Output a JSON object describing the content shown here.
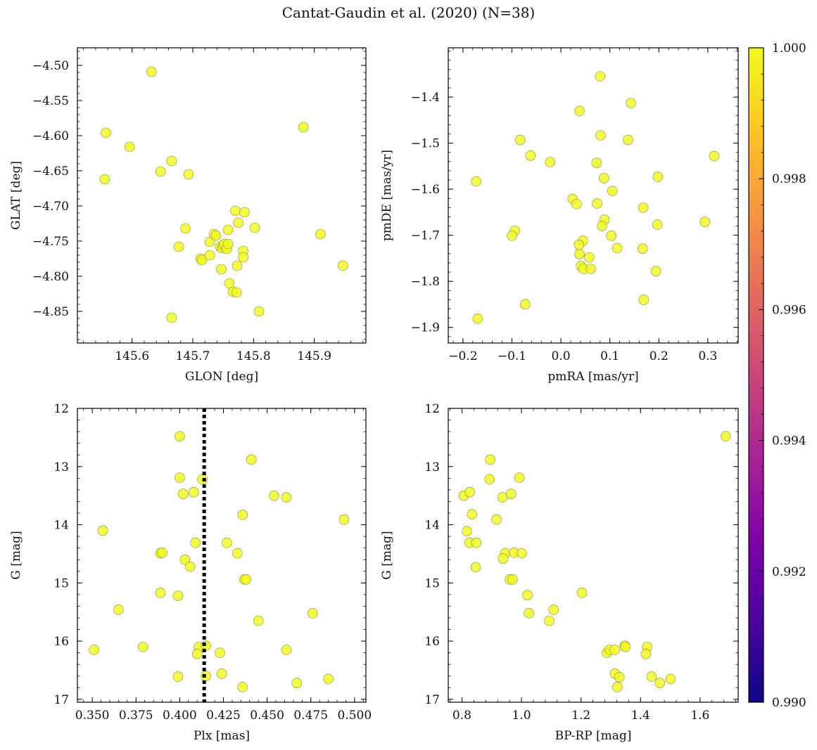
{
  "figure": {
    "title": "Cantat-Gaudin et al. (2020) (N=38)"
  },
  "colorbar": {
    "range": [
      0.99,
      1.0
    ],
    "ticks": [
      "0.990",
      "0.992",
      "0.994",
      "0.996",
      "0.998",
      "1.000"
    ],
    "colormap": "plasma",
    "point_color": "#f0f921"
  },
  "chart_data": [
    {
      "type": "scatter",
      "xlabel": "GLON [deg]",
      "ylabel": "GLAT [deg]",
      "xlim": [
        145.51,
        145.985
      ],
      "ylim": [
        -4.895,
        -4.475
      ],
      "inverted_y": false,
      "xticks": [
        145.6,
        145.7,
        145.8,
        145.9
      ],
      "xtick_labels": [
        "145.6",
        "145.7",
        "145.8",
        "145.9"
      ],
      "yticks": [
        -4.85,
        -4.8,
        -4.75,
        -4.7,
        -4.65,
        -4.6,
        -4.55,
        -4.5
      ],
      "ytick_labels": [
        "−4.85",
        "−4.80",
        "−4.75",
        "−4.70",
        "−4.65",
        "−4.60",
        "−4.55",
        "−4.50"
      ],
      "points": [
        [
          145.632,
          -4.509
        ],
        [
          145.557,
          -4.596
        ],
        [
          145.596,
          -4.616
        ],
        [
          145.555,
          -4.662
        ],
        [
          145.647,
          -4.651
        ],
        [
          145.665,
          -4.636
        ],
        [
          145.693,
          -4.655
        ],
        [
          145.882,
          -4.588
        ],
        [
          145.688,
          -4.732
        ],
        [
          145.677,
          -4.758
        ],
        [
          145.713,
          -4.775
        ],
        [
          145.715,
          -4.777
        ],
        [
          145.728,
          -4.751
        ],
        [
          145.728,
          -4.77
        ],
        [
          145.735,
          -4.74
        ],
        [
          145.738,
          -4.742
        ],
        [
          145.745,
          -4.758
        ],
        [
          145.748,
          -4.76
        ],
        [
          145.75,
          -4.756
        ],
        [
          145.752,
          -4.754
        ],
        [
          145.756,
          -4.761
        ],
        [
          145.758,
          -4.734
        ],
        [
          145.758,
          -4.754
        ],
        [
          145.747,
          -4.79
        ],
        [
          145.77,
          -4.707
        ],
        [
          145.785,
          -4.709
        ],
        [
          145.775,
          -4.724
        ],
        [
          145.773,
          -4.785
        ],
        [
          145.783,
          -4.764
        ],
        [
          145.783,
          -4.773
        ],
        [
          145.802,
          -4.731
        ],
        [
          145.76,
          -4.81
        ],
        [
          145.766,
          -4.822
        ],
        [
          145.772,
          -4.823
        ],
        [
          145.809,
          -4.85
        ],
        [
          145.665,
          -4.859
        ],
        [
          145.91,
          -4.74
        ],
        [
          145.947,
          -4.785
        ]
      ]
    },
    {
      "type": "scatter",
      "xlabel": "pmRA [mas/yr]",
      "ylabel": "pmDE [mas/yr]",
      "xlim": [
        -0.23,
        0.362
      ],
      "ylim": [
        -1.934,
        -1.293
      ],
      "inverted_y": false,
      "xticks": [
        -0.2,
        -0.1,
        0.0,
        0.1,
        0.2,
        0.3
      ],
      "xtick_labels": [
        "−0.2",
        "−0.1",
        "0.0",
        "0.1",
        "0.2",
        "0.3"
      ],
      "yticks": [
        -1.9,
        -1.8,
        -1.7,
        -1.6,
        -1.5,
        -1.4
      ],
      "ytick_labels": [
        "−1.9",
        "−1.8",
        "−1.7",
        "−1.6",
        "−1.5",
        "−1.4"
      ],
      "points": [
        [
          0.08,
          -1.355
        ],
        [
          0.143,
          -1.413
        ],
        [
          0.038,
          -1.43
        ],
        [
          -0.083,
          -1.493
        ],
        [
          0.081,
          -1.483
        ],
        [
          0.137,
          -1.493
        ],
        [
          -0.062,
          -1.527
        ],
        [
          -0.022,
          -1.541
        ],
        [
          0.073,
          -1.543
        ],
        [
          0.313,
          -1.528
        ],
        [
          0.088,
          -1.576
        ],
        [
          0.198,
          -1.573
        ],
        [
          -0.173,
          -1.583
        ],
        [
          0.105,
          -1.604
        ],
        [
          0.024,
          -1.621
        ],
        [
          0.032,
          -1.632
        ],
        [
          0.074,
          -1.631
        ],
        [
          0.168,
          -1.64
        ],
        [
          0.089,
          -1.666
        ],
        [
          0.084,
          -1.68
        ],
        [
          0.197,
          -1.677
        ],
        [
          0.294,
          -1.671
        ],
        [
          -0.094,
          -1.69
        ],
        [
          -0.1,
          -1.701
        ],
        [
          0.103,
          -1.701
        ],
        [
          0.045,
          -1.712
        ],
        [
          0.037,
          -1.721
        ],
        [
          0.115,
          -1.728
        ],
        [
          0.167,
          -1.729
        ],
        [
          0.038,
          -1.741
        ],
        [
          0.058,
          -1.748
        ],
        [
          0.041,
          -1.767
        ],
        [
          0.046,
          -1.773
        ],
        [
          0.061,
          -1.773
        ],
        [
          0.194,
          -1.778
        ],
        [
          0.169,
          -1.84
        ],
        [
          -0.073,
          -1.85
        ],
        [
          -0.17,
          -1.881
        ]
      ]
    },
    {
      "type": "scatter",
      "xlabel": "Plx [mas]",
      "ylabel": "G [mag]",
      "xlim": [
        0.3415,
        0.5065
      ],
      "ylim": [
        17.05,
        12.0
      ],
      "inverted_y": true,
      "vline": 0.414,
      "xticks": [
        0.35,
        0.375,
        0.4,
        0.425,
        0.45,
        0.475,
        0.5
      ],
      "xtick_labels": [
        "0.350",
        "0.375",
        "0.400",
        "0.425",
        "0.450",
        "0.475",
        "0.500"
      ],
      "yticks": [
        12,
        13,
        14,
        15,
        16,
        17
      ],
      "ytick_labels": [
        "12",
        "13",
        "14",
        "15",
        "16",
        "17"
      ],
      "points": [
        [
          0.4,
          12.48
        ],
        [
          0.441,
          12.88
        ],
        [
          0.4,
          13.19
        ],
        [
          0.413,
          13.22
        ],
        [
          0.402,
          13.47
        ],
        [
          0.408,
          13.44
        ],
        [
          0.454,
          13.5
        ],
        [
          0.461,
          13.53
        ],
        [
          0.436,
          13.83
        ],
        [
          0.356,
          14.1
        ],
        [
          0.494,
          13.91
        ],
        [
          0.409,
          14.31
        ],
        [
          0.427,
          14.31
        ],
        [
          0.389,
          14.49
        ],
        [
          0.39,
          14.48
        ],
        [
          0.433,
          14.49
        ],
        [
          0.403,
          14.6
        ],
        [
          0.406,
          14.72
        ],
        [
          0.437,
          14.94
        ],
        [
          0.438,
          14.94
        ],
        [
          0.389,
          15.17
        ],
        [
          0.399,
          15.22
        ],
        [
          0.365,
          15.46
        ],
        [
          0.476,
          15.52
        ],
        [
          0.445,
          15.65
        ],
        [
          0.379,
          16.1
        ],
        [
          0.351,
          16.15
        ],
        [
          0.411,
          16.1
        ],
        [
          0.415,
          16.08
        ],
        [
          0.41,
          16.22
        ],
        [
          0.423,
          16.2
        ],
        [
          0.461,
          16.15
        ],
        [
          0.399,
          16.61
        ],
        [
          0.415,
          16.6
        ],
        [
          0.424,
          16.56
        ],
        [
          0.436,
          16.79
        ],
        [
          0.467,
          16.72
        ],
        [
          0.485,
          16.65
        ]
      ]
    },
    {
      "type": "scatter",
      "xlabel": "BP-RP [mag]",
      "ylabel": "G [mag]",
      "xlim": [
        0.754,
        1.728
      ],
      "ylim": [
        17.05,
        12.0
      ],
      "inverted_y": true,
      "xticks": [
        0.8,
        1.0,
        1.2,
        1.4,
        1.6
      ],
      "xtick_labels": [
        "0.8",
        "1.0",
        "1.2",
        "1.4",
        "1.6"
      ],
      "yticks": [
        12,
        13,
        14,
        15,
        16,
        17
      ],
      "ytick_labels": [
        "12",
        "13",
        "14",
        "15",
        "16",
        "17"
      ],
      "points": [
        [
          1.686,
          12.48
        ],
        [
          0.895,
          12.88
        ],
        [
          0.893,
          13.22
        ],
        [
          0.993,
          13.19
        ],
        [
          0.806,
          13.5
        ],
        [
          0.826,
          13.44
        ],
        [
          0.936,
          13.53
        ],
        [
          0.965,
          13.47
        ],
        [
          0.834,
          13.82
        ],
        [
          0.916,
          13.91
        ],
        [
          0.817,
          14.11
        ],
        [
          0.826,
          14.31
        ],
        [
          0.848,
          14.31
        ],
        [
          0.945,
          14.49
        ],
        [
          0.938,
          14.58
        ],
        [
          0.975,
          14.48
        ],
        [
          1.001,
          14.49
        ],
        [
          0.846,
          14.73
        ],
        [
          0.961,
          14.94
        ],
        [
          0.97,
          14.94
        ],
        [
          1.02,
          15.21
        ],
        [
          1.203,
          15.17
        ],
        [
          1.108,
          15.46
        ],
        [
          1.025,
          15.52
        ],
        [
          1.093,
          15.65
        ],
        [
          1.287,
          16.2
        ],
        [
          1.296,
          16.15
        ],
        [
          1.313,
          16.15
        ],
        [
          1.347,
          16.08
        ],
        [
          1.349,
          16.1
        ],
        [
          1.422,
          16.1
        ],
        [
          1.418,
          16.22
        ],
        [
          1.314,
          16.56
        ],
        [
          1.329,
          16.62
        ],
        [
          1.322,
          16.79
        ],
        [
          1.437,
          16.61
        ],
        [
          1.465,
          16.72
        ],
        [
          1.501,
          16.65
        ]
      ]
    }
  ]
}
